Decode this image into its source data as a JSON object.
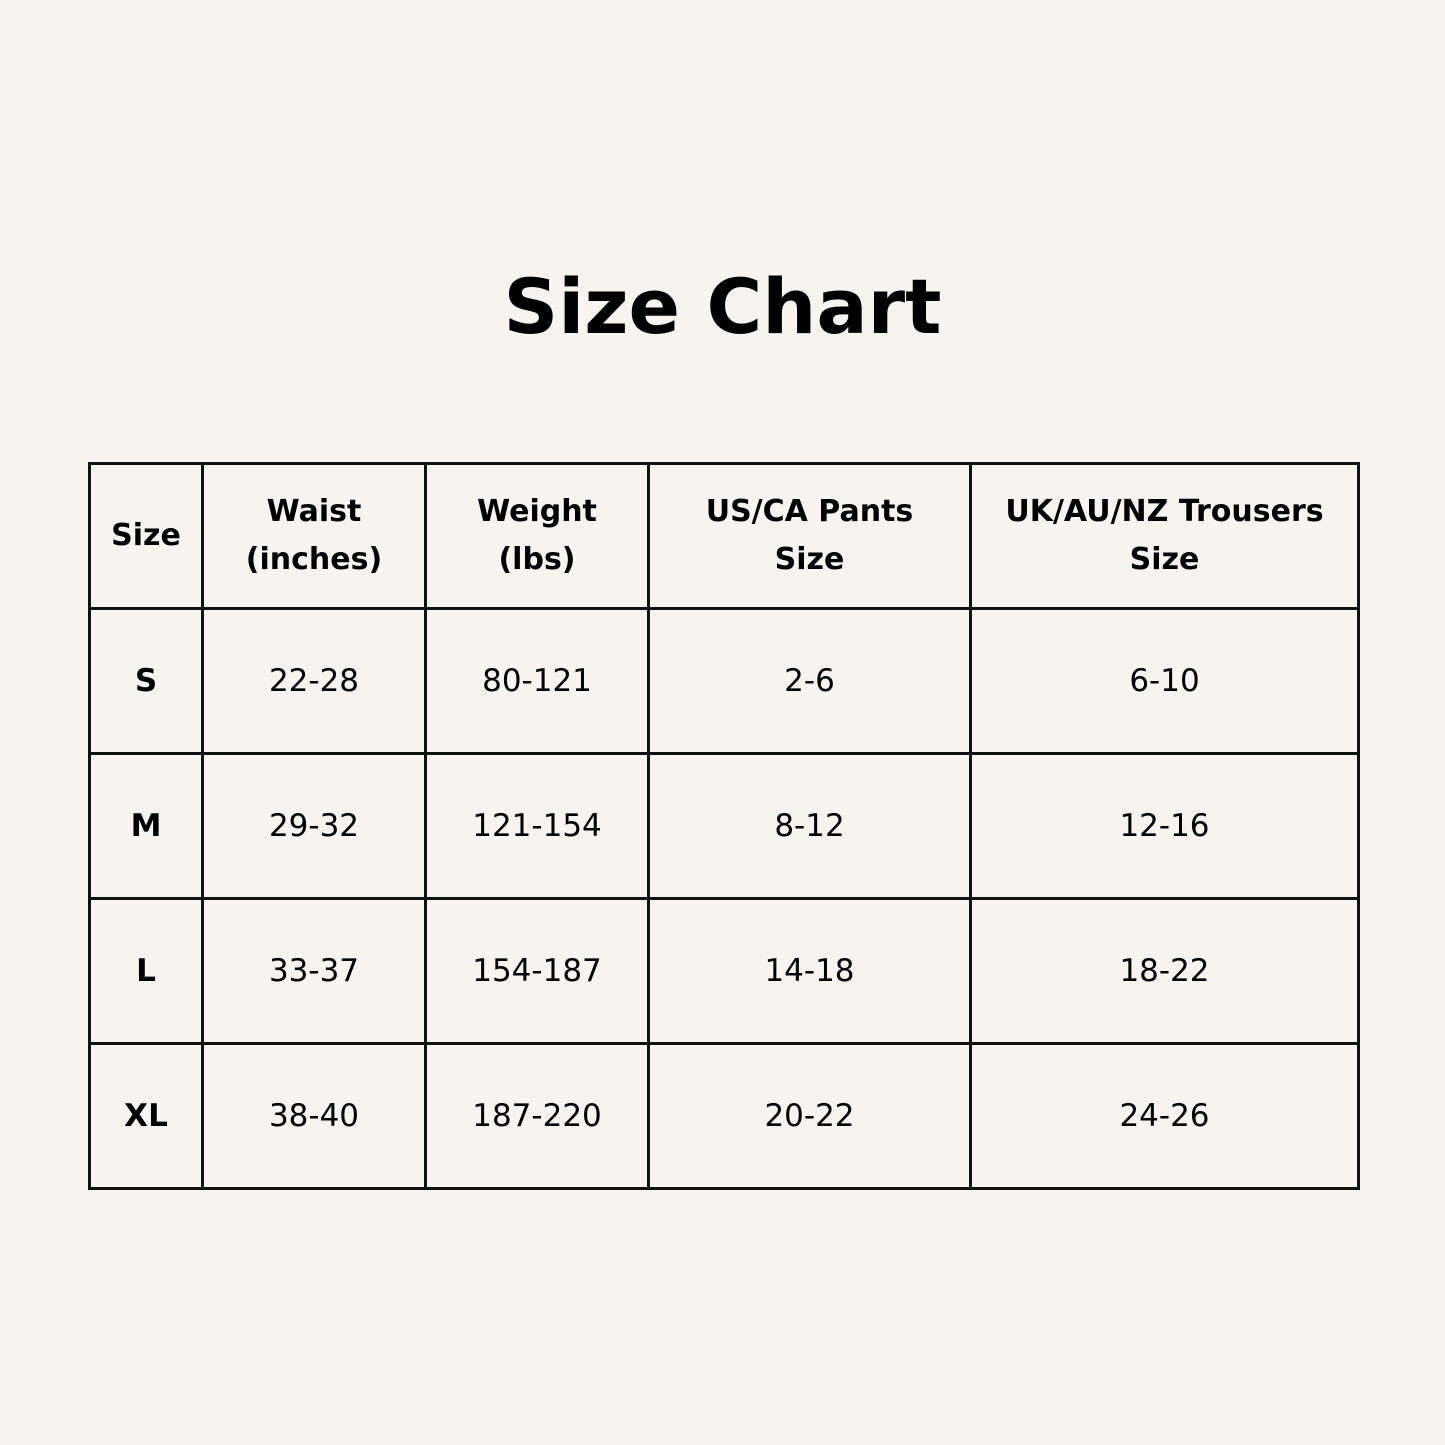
{
  "title": "Size Chart",
  "colors": {
    "background": "#f7f3ef",
    "text": "#000000",
    "border": "#111111"
  },
  "table": {
    "headers": [
      [
        "Size"
      ],
      [
        "Waist",
        "(inches)"
      ],
      [
        "Weight",
        "(lbs)"
      ],
      [
        "US/CA Pants",
        "Size"
      ],
      [
        "UK/AU/NZ Trousers",
        "Size"
      ]
    ],
    "rows": [
      [
        "S",
        "22-28",
        "80-121",
        "2-6",
        "6-10"
      ],
      [
        "M",
        "29-32",
        "121-154",
        "8-12",
        "12-16"
      ],
      [
        "L",
        "33-37",
        "154-187",
        "14-18",
        "18-22"
      ],
      [
        "XL",
        "38-40",
        "187-220",
        "20-22",
        "24-26"
      ]
    ]
  }
}
